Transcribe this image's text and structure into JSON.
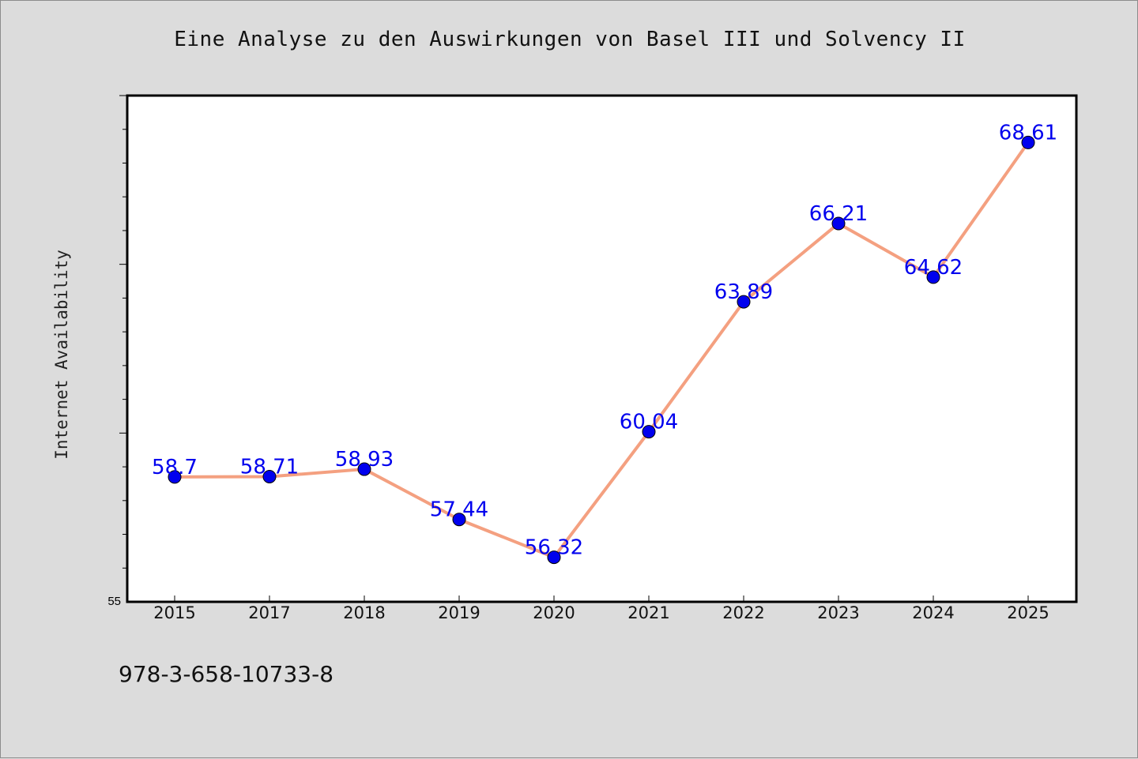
{
  "chart_data": {
    "type": "line",
    "title": "Eine Analyse zu den Auswirkungen von Basel III und Solvency II",
    "xlabel": "",
    "ylabel": "Internet Availability",
    "categories": [
      "2015",
      "2017",
      "2018",
      "2019",
      "2020",
      "2021",
      "2022",
      "2023",
      "2024",
      "2025"
    ],
    "series": [
      {
        "values": [
          58.7,
          58.71,
          58.93,
          57.44,
          56.32,
          60.04,
          63.89,
          66.21,
          64.62,
          68.61
        ],
        "labels": [
          "58.7",
          "58.71",
          "58.93",
          "57.44",
          "56.32",
          "60.04",
          "63.89",
          "66.21",
          "64.62",
          "68.61"
        ]
      }
    ],
    "ylim": [
      55,
      70
    ],
    "yticks_labeled": [
      {
        "value": 55,
        "label": "55"
      }
    ],
    "grid": false,
    "line_color": "#f4a080",
    "marker_color": "#0000ee",
    "label_color": "#0000ee",
    "plot_background": "#ffffff",
    "page_background": "#dcdcdc"
  },
  "footer": {
    "isbn": "978-3-658-10733-8"
  }
}
